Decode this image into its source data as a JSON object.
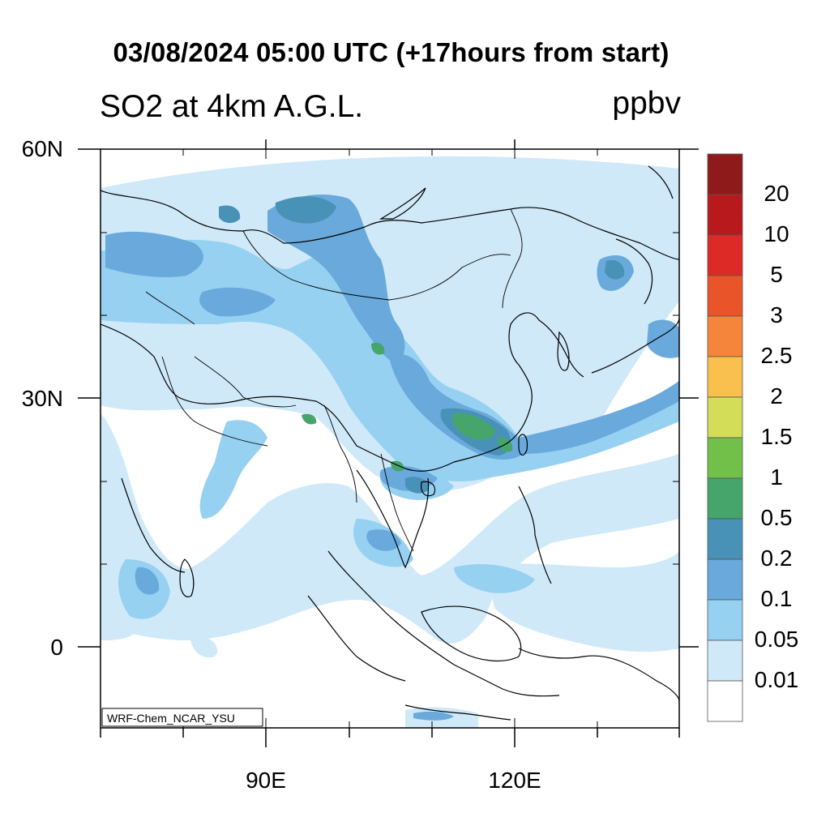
{
  "title": "03/08/2024 05:00 UTC (+17hours from start)",
  "subtitle": "SO2 at 4km A.G.L.",
  "units": "ppbv",
  "model_label": "WRF-Chem_NCAR_YSU",
  "lat_labels": [
    "60N",
    "30N",
    "0"
  ],
  "lon_labels": [
    "90E",
    "120E"
  ],
  "colorbar": {
    "labels": [
      "20",
      "10",
      "5",
      "3",
      "2.5",
      "2",
      "1.5",
      "1",
      "0.5",
      "0.2",
      "0.1",
      "0.05",
      "0.01"
    ],
    "colors": [
      "#8e1a1a",
      "#b8191c",
      "#dd2a26",
      "#e95428",
      "#f4853a",
      "#f9c04e",
      "#d3dd57",
      "#72c04a",
      "#46a56b",
      "#4992b7",
      "#69a9dc",
      "#96d1f1",
      "#cfe9f8",
      "#ffffff"
    ]
  }
}
